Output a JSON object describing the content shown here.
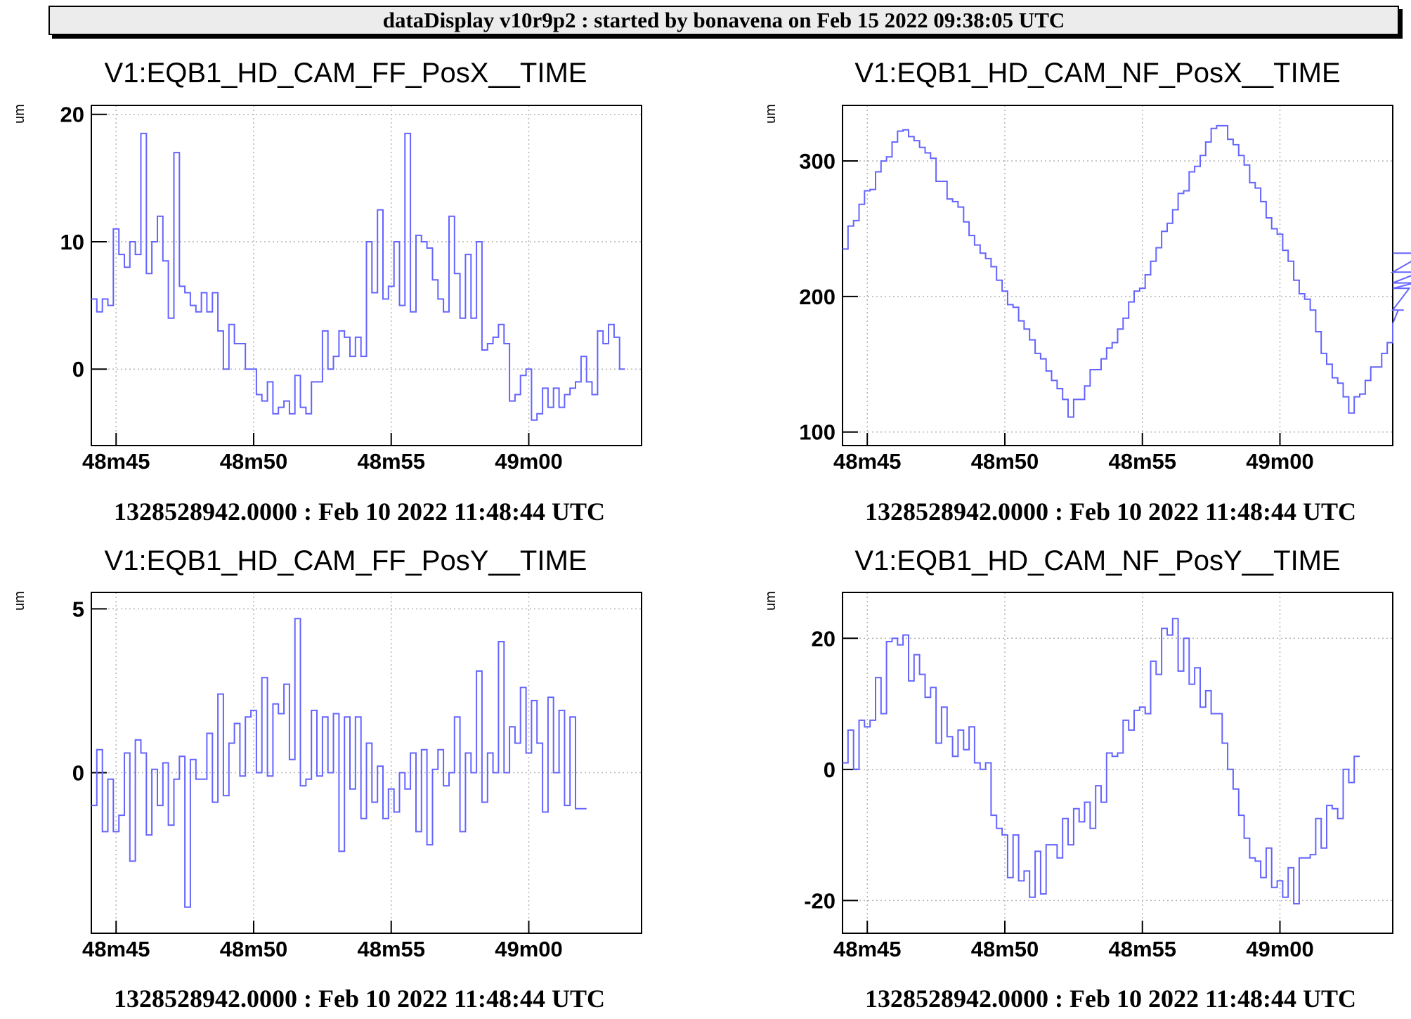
{
  "header": {
    "title": "dataDisplay v10r9p2 : started by bonavena on Feb 15 2022 09:38:05 UTC"
  },
  "colors": {
    "line": "#6464ff",
    "grid": "#b4b4b4",
    "frame": "#000000"
  },
  "chart_data": [
    {
      "type": "line",
      "title": "V1:EQB1_HD_CAM_FF_PosX__TIME",
      "ylabel": "um",
      "xlabel": "1328528942.0000 : Feb 10 2022 11:48:44 UTC",
      "x_ticks": [
        "48m45",
        "48m50",
        "48m55",
        "49m00"
      ],
      "y_ticks": [
        0,
        10,
        20
      ],
      "xlim": [
        44.1,
        64.1
      ],
      "ylim": [
        -6,
        20.7
      ],
      "grid": true,
      "series": [
        {
          "step": 0.2,
          "x_start": 44.1,
          "values": [
            5.5,
            4.5,
            5.5,
            5,
            11,
            9,
            8,
            10,
            9,
            18.5,
            7.5,
            10,
            12,
            8.5,
            4,
            17,
            6.5,
            6,
            5,
            4.5,
            6,
            4.5,
            6,
            3,
            0,
            3.5,
            2,
            2,
            0,
            0,
            -2,
            -2.5,
            -1,
            -3.5,
            -3,
            -2.5,
            -3.5,
            -0.5,
            -3,
            -3.5,
            -1,
            -1,
            3,
            0,
            1,
            3,
            2.5,
            1,
            2.5,
            1,
            10,
            6,
            12.5,
            5.5,
            6.5,
            10,
            5,
            18.5,
            4.5,
            10.5,
            10,
            9.5,
            7,
            5.5,
            4.5,
            12,
            7.5,
            4,
            9,
            4,
            10,
            1.5,
            2,
            2.5,
            3.5,
            2,
            -2.5,
            -2,
            -0.5,
            0,
            -4,
            -3.5,
            -1.5,
            -3,
            -1.5,
            -3,
            -2,
            -1.5,
            -1,
            1,
            -1,
            -2,
            3,
            2,
            3.5,
            2.5,
            0
          ]
        }
      ]
    },
    {
      "type": "line",
      "title": "V1:EQB1_HD_CAM_NF_PosX__TIME",
      "ylabel": "um",
      "xlabel": "1328528942.0000 : Feb 10 2022 11:48:44 UTC",
      "x_ticks": [
        "48m45",
        "48m50",
        "48m55",
        "49m00"
      ],
      "y_ticks": [
        100,
        200,
        300
      ],
      "xlim": [
        44.1,
        64.1
      ],
      "ylim": [
        90,
        341
      ],
      "grid": true,
      "series": [
        {
          "step": 0.2,
          "x_start": 44.1,
          "values": [
            235,
            252,
            256,
            268,
            278,
            279,
            292,
            300,
            303,
            314,
            322,
            323,
            318,
            315,
            310,
            306,
            302,
            285,
            285,
            272,
            270,
            266,
            255,
            245,
            238,
            232,
            228,
            222,
            212,
            204,
            194,
            192,
            182,
            176,
            168,
            158,
            154,
            145,
            138,
            132,
            124,
            111,
            124,
            124,
            134,
            146,
            146,
            154,
            162,
            166,
            176,
            184,
            196,
            204,
            206,
            216,
            226,
            236,
            248,
            254,
            264,
            276,
            278,
            292,
            296,
            304,
            314,
            324,
            326,
            326,
            316,
            312,
            304,
            297,
            284,
            280,
            270,
            258,
            250,
            246,
            234,
            226,
            212,
            202,
            198,
            190,
            174,
            158,
            150,
            140,
            136,
            126,
            114,
            126,
            128,
            138,
            148,
            148,
            158,
            166,
            180,
            190,
            190,
            206,
            210,
            218,
            232,
            232
          ]
        }
      ]
    },
    {
      "type": "line",
      "title": "V1:EQB1_HD_CAM_FF_PosY__TIME",
      "ylabel": "um",
      "xlabel": "1328528942.0000 : Feb 10 2022 11:48:44 UTC",
      "x_ticks": [
        "48m45",
        "48m50",
        "48m55",
        "49m00"
      ],
      "y_ticks": [
        0,
        5
      ],
      "xlim": [
        44.1,
        64.1
      ],
      "ylim": [
        -4.9,
        5.5
      ],
      "grid": true,
      "series": [
        {
          "step": 0.2,
          "x_start": 44.1,
          "values": [
            -1,
            0.7,
            -1.8,
            -0.2,
            -1.8,
            -1.3,
            0.6,
            -2.7,
            1,
            0.6,
            -1.9,
            0.1,
            -1,
            0.3,
            -1.6,
            -0.2,
            0.5,
            -4.1,
            0.4,
            -0.2,
            -0.2,
            1.2,
            -0.9,
            2.4,
            -0.7,
            0.9,
            1.5,
            -0.1,
            1.7,
            1.9,
            0,
            2.9,
            -0.1,
            2.1,
            1.8,
            2.7,
            0.4,
            4.7,
            -0.4,
            -0.2,
            1.9,
            -0.1,
            1.7,
            0,
            1.8,
            -2.4,
            1.7,
            -0.5,
            1.7,
            -1.4,
            0.9,
            -0.9,
            0.2,
            -1.4,
            -0.5,
            -1.2,
            0,
            -0.5,
            0.6,
            -1.8,
            0.7,
            -2.2,
            0.1,
            0.7,
            -0.4,
            0,
            1.7,
            -1.8,
            0.6,
            0,
            3.1,
            -0.9,
            0.6,
            0,
            4,
            0,
            1.4,
            0.9,
            2.6,
            0.6,
            2.2,
            0.9,
            -1.2,
            2.3,
            0,
            1.9,
            -1,
            1.7,
            -1.1,
            -1.1
          ]
        }
      ]
    },
    {
      "type": "line",
      "title": "V1:EQB1_HD_CAM_NF_PosY__TIME",
      "ylabel": "um",
      "xlabel": "1328528942.0000 : Feb 10 2022 11:48:44 UTC",
      "x_ticks": [
        "48m45",
        "48m50",
        "48m55",
        "49m00"
      ],
      "y_ticks": [
        -20,
        0,
        20
      ],
      "xlim": [
        44.1,
        64.1
      ],
      "ylim": [
        -25,
        27
      ],
      "grid": true,
      "series": [
        {
          "step": 0.2,
          "x_start": 44.1,
          "values": [
            1,
            6,
            0,
            7.5,
            6.5,
            7.5,
            14,
            8.5,
            19.5,
            20,
            19,
            20.5,
            13.5,
            17.5,
            14.5,
            11,
            12.5,
            4,
            9.5,
            5,
            2,
            6,
            3,
            6.5,
            1,
            0,
            1,
            -7,
            -9,
            -10,
            -16.5,
            -10,
            -17,
            -15.5,
            -19.5,
            -12.5,
            -19,
            -11.5,
            -11.5,
            -13.5,
            -7.5,
            -11.5,
            -6,
            -8,
            -5,
            -9,
            -2.5,
            -5,
            2.5,
            2,
            2.5,
            7.5,
            6,
            9,
            9.5,
            8.5,
            16.5,
            14.5,
            21.5,
            20.5,
            23,
            15,
            20,
            13,
            15.5,
            9.5,
            12,
            8.5,
            8.5,
            4,
            0,
            -3,
            -7,
            -10.5,
            -13.5,
            -14,
            -16.5,
            -12,
            -18,
            -17,
            -19.5,
            -15,
            -20.5,
            -13.5,
            -13.5,
            -13,
            -7.5,
            -12,
            -5.5,
            -6,
            -7.5,
            0,
            -2,
            2
          ]
        }
      ]
    }
  ]
}
